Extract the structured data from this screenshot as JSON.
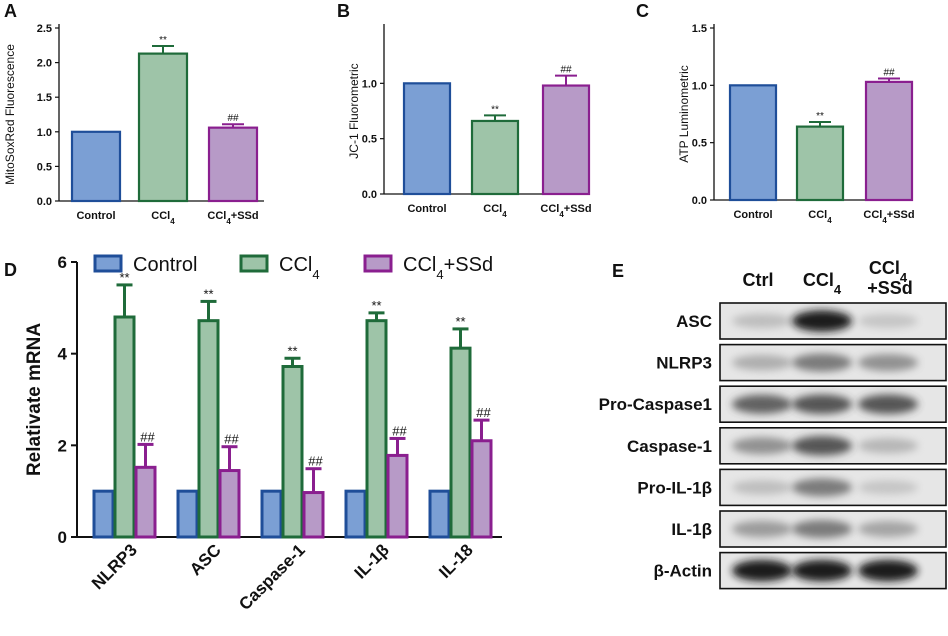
{
  "panels": {
    "A": "A",
    "B": "B",
    "C": "C",
    "D": "D",
    "E": "E"
  },
  "colors": {
    "control_fill": "#7b9fd4",
    "control_edge": "#1f4e99",
    "ccl4_fill": "#9ec4a8",
    "ccl4_edge": "#1f6b3a",
    "ssd_fill": "#b79ac7",
    "ssd_edge": "#8a1f8f"
  },
  "chart_data": [
    {
      "id": "A",
      "type": "bar",
      "ylabel": "MitoSoxRed Fluorescence",
      "ylim": [
        0,
        2.5
      ],
      "yticks": [
        "0.0",
        "0.5",
        "1.0",
        "1.5",
        "2.0",
        "2.5"
      ],
      "categories": [
        {
          "main": "Control",
          "sub": "",
          "tail": ""
        },
        {
          "main": "CCl",
          "sub": "4",
          "tail": ""
        },
        {
          "main": "CCl",
          "sub": "4",
          "tail": "+SSd"
        }
      ],
      "values": [
        1.0,
        2.13,
        1.06
      ],
      "errors": [
        0,
        0.11,
        0.05
      ],
      "sig": [
        "",
        "**",
        "##"
      ]
    },
    {
      "id": "B",
      "type": "bar",
      "ylabel": "JC-1 Fluorometric",
      "ylim": [
        0,
        1.5
      ],
      "yticks": [
        "0.0",
        "0.5",
        "1.0"
      ],
      "categories": [
        {
          "main": "Control",
          "sub": "",
          "tail": ""
        },
        {
          "main": "CCl",
          "sub": "4",
          "tail": ""
        },
        {
          "main": "CCl",
          "sub": "4",
          "tail": "+SSd"
        }
      ],
      "values": [
        1.0,
        0.66,
        0.98
      ],
      "errors": [
        0,
        0.05,
        0.09
      ],
      "sig": [
        "",
        "**",
        "##"
      ]
    },
    {
      "id": "C",
      "type": "bar",
      "ylabel": "ATP  Luminometric",
      "ylim": [
        0,
        1.5
      ],
      "yticks": [
        "0.0",
        "0.5",
        "1.0",
        "1.5"
      ],
      "categories": [
        {
          "main": "Control",
          "sub": "",
          "tail": ""
        },
        {
          "main": "CCl",
          "sub": "4",
          "tail": ""
        },
        {
          "main": "CCl",
          "sub": "4",
          "tail": "+SSd"
        }
      ],
      "values": [
        1.0,
        0.64,
        1.03
      ],
      "errors": [
        0,
        0.04,
        0.03
      ],
      "sig": [
        "",
        "**",
        "##"
      ]
    },
    {
      "id": "D",
      "type": "bar",
      "ylabel": "Relativate mRNA",
      "ylim": [
        0,
        6
      ],
      "yticks": [
        "0",
        "2",
        "4",
        "6"
      ],
      "categories": [
        "NLRP3",
        "ASC",
        "Caspase-1",
        "IL-1β",
        "IL-18"
      ],
      "legend": [
        {
          "main": "Control",
          "sub": "",
          "tail": ""
        },
        {
          "main": "CCl",
          "sub": "4",
          "tail": ""
        },
        {
          "main": "CCl",
          "sub": "4",
          "tail": "+SSd"
        }
      ],
      "series": [
        {
          "name": "Control",
          "values": [
            1,
            1,
            1,
            1,
            1
          ],
          "errors": [
            0,
            0,
            0,
            0,
            0
          ],
          "sig": [
            "",
            "",
            "",
            "",
            ""
          ]
        },
        {
          "name": "CCl4",
          "values": [
            4.8,
            4.72,
            3.72,
            4.72,
            4.12
          ],
          "errors": [
            0.7,
            0.42,
            0.18,
            0.17,
            0.42
          ],
          "sig": [
            "**",
            "**",
            "**",
            "**",
            "**"
          ]
        },
        {
          "name": "CCl4+SSd",
          "values": [
            1.52,
            1.45,
            0.97,
            1.78,
            2.1
          ],
          "errors": [
            0.5,
            0.52,
            0.52,
            0.37,
            0.45
          ],
          "sig": [
            "##",
            "##",
            "##",
            "##",
            "##"
          ]
        }
      ]
    }
  ],
  "blot": {
    "headers": [
      {
        "main": "Ctrl",
        "sub": "",
        "tail": ""
      },
      {
        "main": "CCl",
        "sub": "4",
        "tail": ""
      },
      {
        "main": "CCl",
        "sub": "4",
        "tail": "+SSd"
      }
    ],
    "rows": [
      {
        "label": "ASC",
        "intensity": [
          0.25,
          0.95,
          0.2
        ]
      },
      {
        "label": "NLRP3",
        "intensity": [
          0.35,
          0.6,
          0.5
        ]
      },
      {
        "label": "Pro-Caspase1",
        "intensity": [
          0.7,
          0.75,
          0.75
        ]
      },
      {
        "label": "Caspase-1",
        "intensity": [
          0.5,
          0.75,
          0.3
        ]
      },
      {
        "label": "Pro-IL-1β",
        "intensity": [
          0.25,
          0.6,
          0.2
        ]
      },
      {
        "label": "IL-1β",
        "intensity": [
          0.45,
          0.6,
          0.4
        ]
      },
      {
        "label": "β-Actin",
        "intensity": [
          0.95,
          0.95,
          0.95
        ]
      }
    ]
  }
}
